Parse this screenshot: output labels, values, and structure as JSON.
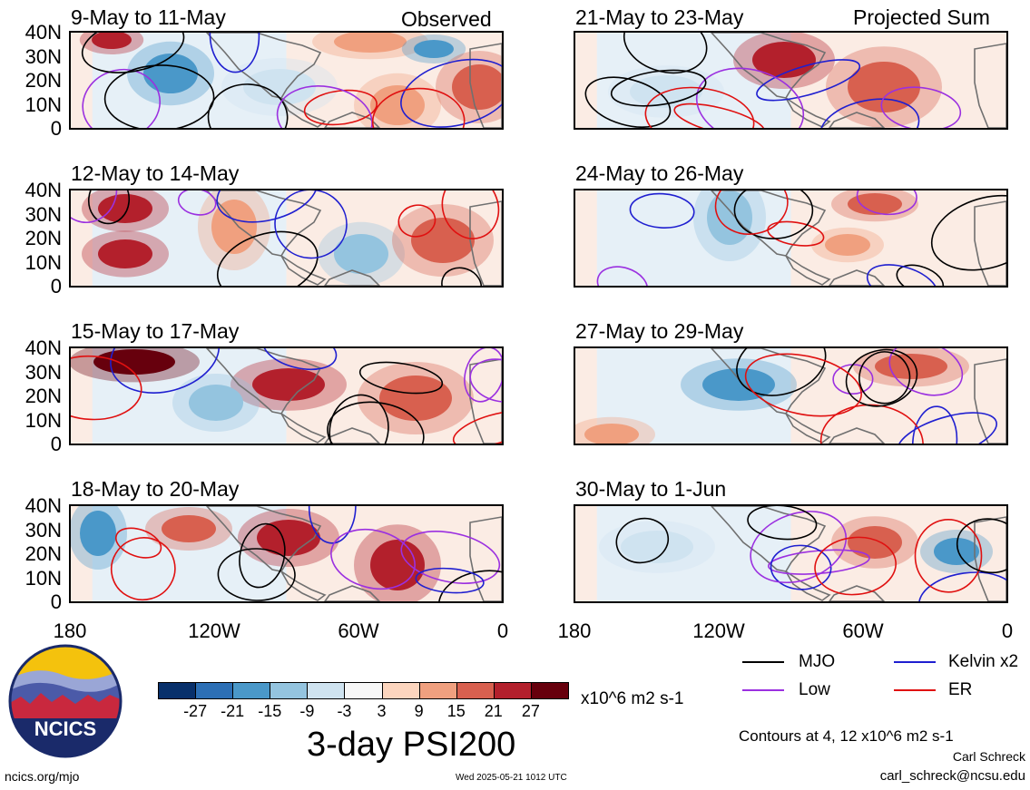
{
  "panels": [
    {
      "title": "9-May to 11-May",
      "tag": "Observed"
    },
    {
      "title": "12-May to 14-May",
      "tag": ""
    },
    {
      "title": "15-May to 17-May",
      "tag": ""
    },
    {
      "title": "18-May to 20-May",
      "tag": ""
    },
    {
      "title": "21-May to 23-May",
      "tag": "Projected Sum"
    },
    {
      "title": "24-May to 26-May",
      "tag": ""
    },
    {
      "title": "27-May to 29-May",
      "tag": ""
    },
    {
      "title": "30-May to 1-Jun",
      "tag": ""
    }
  ],
  "lat_labels": [
    "40N",
    "30N",
    "20N",
    "10N",
    "0"
  ],
  "lon_labels": [
    "180",
    "120W",
    "60W",
    "0"
  ],
  "colorbar": {
    "colors": [
      "#08306b",
      "#2c6fb5",
      "#4a98c9",
      "#94c4df",
      "#cfe3f0",
      "#f7f7f7",
      "#fcd5be",
      "#f0a07f",
      "#d8604f",
      "#b3202c",
      "#67000d"
    ],
    "labels": [
      "-27",
      "-21",
      "-15",
      "-9",
      "-3",
      "3",
      "9",
      "15",
      "21",
      "27"
    ],
    "units": "x10^6 m2 s-1",
    "title": "3-day PSI200"
  },
  "legend": [
    {
      "label": "MJO",
      "color": "#000000"
    },
    {
      "label": "Kelvin x2",
      "color": "#1f1fd0"
    },
    {
      "label": "Low",
      "color": "#9b30e0"
    },
    {
      "label": "ER",
      "color": "#e01010"
    }
  ],
  "contours_note": "Contours at 4, 12 x10^6 m2 s-1",
  "credit_name": "Carl Schreck",
  "credit_email": "carl_schreck@ncsu.edu",
  "site": "ncics.org/mjo",
  "timestamp": "Wed 2025-05-21 1012 UTC",
  "logo_text": "NCICS"
}
